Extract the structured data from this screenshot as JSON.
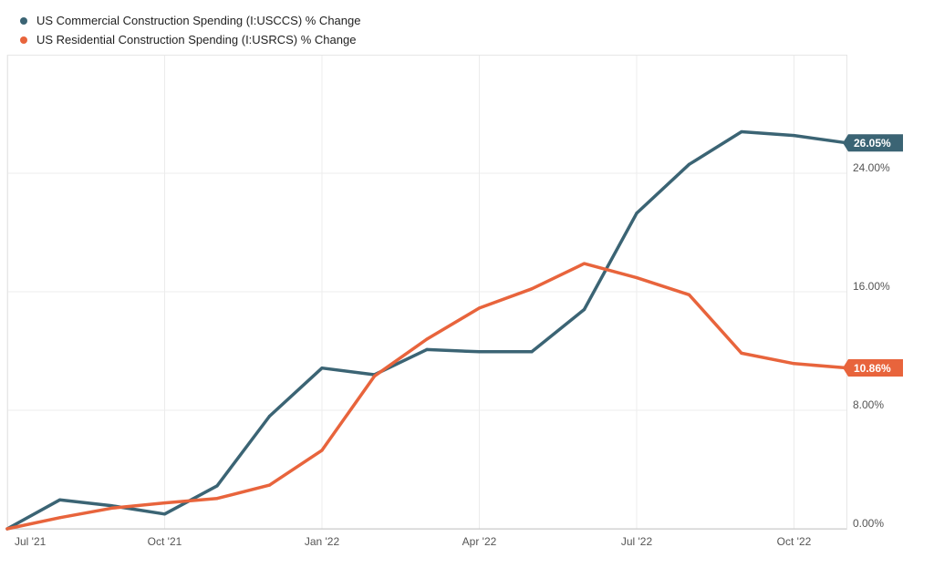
{
  "chart_data": {
    "type": "line",
    "title": "",
    "xlabel": "",
    "ylabel": "",
    "x": [
      "2021-07",
      "2021-08",
      "2021-09",
      "2021-10",
      "2021-11",
      "2021-12",
      "2022-01",
      "2022-02",
      "2022-03",
      "2022-04",
      "2022-05",
      "2022-06",
      "2022-07",
      "2022-08",
      "2022-09",
      "2022-10",
      "2022-11"
    ],
    "x_ticks": [
      {
        "label": "Jul '21",
        "x": "2021-07"
      },
      {
        "label": "Oct '21",
        "x": "2021-10"
      },
      {
        "label": "Jan '22",
        "x": "2022-01"
      },
      {
        "label": "Apr '22",
        "x": "2022-04"
      },
      {
        "label": "Jul '22",
        "x": "2022-07"
      },
      {
        "label": "Oct '22",
        "x": "2022-10"
      }
    ],
    "y_ticks": [
      {
        "label": "0.00%",
        "value": 0
      },
      {
        "label": "8.00%",
        "value": 8
      },
      {
        "label": "16.00%",
        "value": 16
      },
      {
        "label": "24.00%",
        "value": 24
      }
    ],
    "ylim": [
      0,
      32
    ],
    "grid": true,
    "legend_position": "top-left",
    "series": [
      {
        "name": "US Commercial Construction Spending (I:USCCS) % Change",
        "color": "#3b6474",
        "values": [
          0,
          1.95,
          1.55,
          1.0,
          2.9,
          7.6,
          10.85,
          10.4,
          12.1,
          11.95,
          11.95,
          14.8,
          21.3,
          24.6,
          26.8,
          26.55,
          26.05
        ],
        "end_label": "26.05%"
      },
      {
        "name": "US Residential Construction Spending (I:USRCS) % Change",
        "color": "#e8643c",
        "values": [
          0,
          0.75,
          1.4,
          1.75,
          2.05,
          2.95,
          5.3,
          10.3,
          12.8,
          14.9,
          16.2,
          17.9,
          16.95,
          15.8,
          11.85,
          11.15,
          10.86
        ],
        "end_label": "10.86%"
      }
    ]
  }
}
